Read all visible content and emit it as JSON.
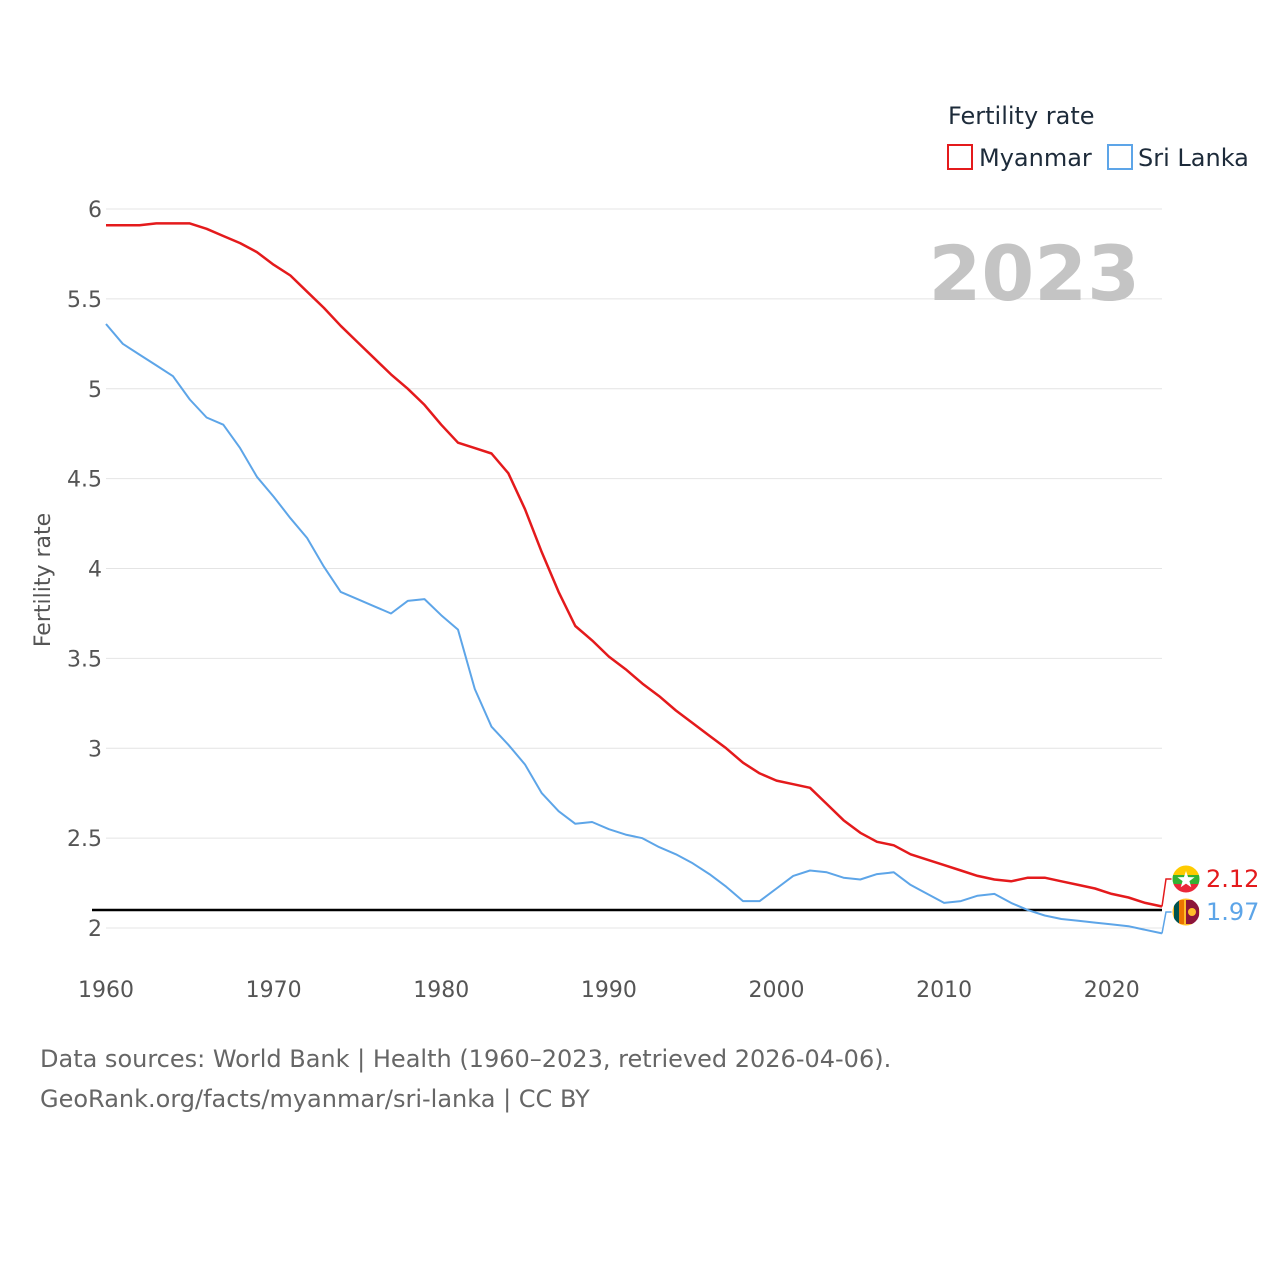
{
  "chart_data": {
    "type": "line",
    "title": "",
    "legend_title": "Fertility rate",
    "ylabel": "Fertility rate",
    "xlabel": "",
    "xlim": [
      1960,
      2023
    ],
    "ylim": [
      1.85,
      6.05
    ],
    "y_ticks": [
      "2",
      "2.5",
      "3",
      "3.5",
      "4",
      "4.5",
      "5",
      "5.5",
      "6"
    ],
    "x_ticks": [
      "1960",
      "1970",
      "1980",
      "1990",
      "2000",
      "2010",
      "2020"
    ],
    "current_year": "2023",
    "reference_line": 2.1,
    "legend_position": "top-right",
    "series": [
      {
        "name": "Myanmar",
        "color": "#e41a1c",
        "end_label": "2.12",
        "flag_icon": "myanmar-flag-icon",
        "x": [
          1960,
          1961,
          1962,
          1963,
          1964,
          1965,
          1966,
          1967,
          1968,
          1969,
          1970,
          1971,
          1972,
          1973,
          1974,
          1975,
          1976,
          1977,
          1978,
          1979,
          1980,
          1981,
          1982,
          1983,
          1984,
          1985,
          1986,
          1987,
          1988,
          1989,
          1990,
          1991,
          1992,
          1993,
          1994,
          1995,
          1996,
          1997,
          1998,
          1999,
          2000,
          2001,
          2002,
          2003,
          2004,
          2005,
          2006,
          2007,
          2008,
          2009,
          2010,
          2011,
          2012,
          2013,
          2014,
          2015,
          2016,
          2017,
          2018,
          2019,
          2020,
          2021,
          2022,
          2023
        ],
        "values": [
          5.91,
          5.91,
          5.91,
          5.92,
          5.92,
          5.92,
          5.89,
          5.85,
          5.81,
          5.76,
          5.69,
          5.63,
          5.54,
          5.45,
          5.35,
          5.26,
          5.17,
          5.08,
          5.0,
          4.91,
          4.8,
          4.7,
          4.67,
          4.64,
          4.53,
          4.33,
          4.09,
          3.87,
          3.68,
          3.6,
          3.51,
          3.44,
          3.36,
          3.29,
          3.21,
          3.14,
          3.07,
          3.0,
          2.92,
          2.86,
          2.82,
          2.8,
          2.78,
          2.69,
          2.6,
          2.53,
          2.48,
          2.46,
          2.41,
          2.38,
          2.35,
          2.32,
          2.29,
          2.27,
          2.26,
          2.28,
          2.28,
          2.26,
          2.24,
          2.22,
          2.19,
          2.17,
          2.14,
          2.12
        ]
      },
      {
        "name": "Sri Lanka",
        "color": "#5da5e8",
        "end_label": "1.97",
        "flag_icon": "sri-lanka-flag-icon",
        "x": [
          1960,
          1961,
          1962,
          1963,
          1964,
          1965,
          1966,
          1967,
          1968,
          1969,
          1970,
          1971,
          1972,
          1973,
          1974,
          1975,
          1976,
          1977,
          1978,
          1979,
          1980,
          1981,
          1982,
          1983,
          1984,
          1985,
          1986,
          1987,
          1988,
          1989,
          1990,
          1991,
          1992,
          1993,
          1994,
          1995,
          1996,
          1997,
          1998,
          1999,
          2000,
          2001,
          2002,
          2003,
          2004,
          2005,
          2006,
          2007,
          2008,
          2009,
          2010,
          2011,
          2012,
          2013,
          2014,
          2015,
          2016,
          2017,
          2018,
          2019,
          2020,
          2021,
          2022,
          2023
        ],
        "values": [
          5.36,
          5.25,
          5.19,
          5.13,
          5.07,
          4.94,
          4.84,
          4.8,
          4.67,
          4.51,
          4.4,
          4.28,
          4.17,
          4.01,
          3.87,
          3.83,
          3.79,
          3.75,
          3.82,
          3.83,
          3.74,
          3.66,
          3.33,
          3.12,
          3.02,
          2.91,
          2.75,
          2.65,
          2.58,
          2.59,
          2.55,
          2.52,
          2.5,
          2.45,
          2.41,
          2.36,
          2.3,
          2.23,
          2.15,
          2.15,
          2.22,
          2.29,
          2.32,
          2.31,
          2.28,
          2.27,
          2.3,
          2.31,
          2.24,
          2.19,
          2.14,
          2.15,
          2.18,
          2.19,
          2.14,
          2.1,
          2.07,
          2.05,
          2.04,
          2.03,
          2.02,
          2.01,
          1.99,
          1.97
        ]
      }
    ]
  },
  "footer": {
    "line1": "Data sources: World Bank | Health (1960–2023, retrieved 2026-04-06).",
    "line2": "GeoRank.org/facts/myanmar/sri-lanka | CC BY"
  }
}
